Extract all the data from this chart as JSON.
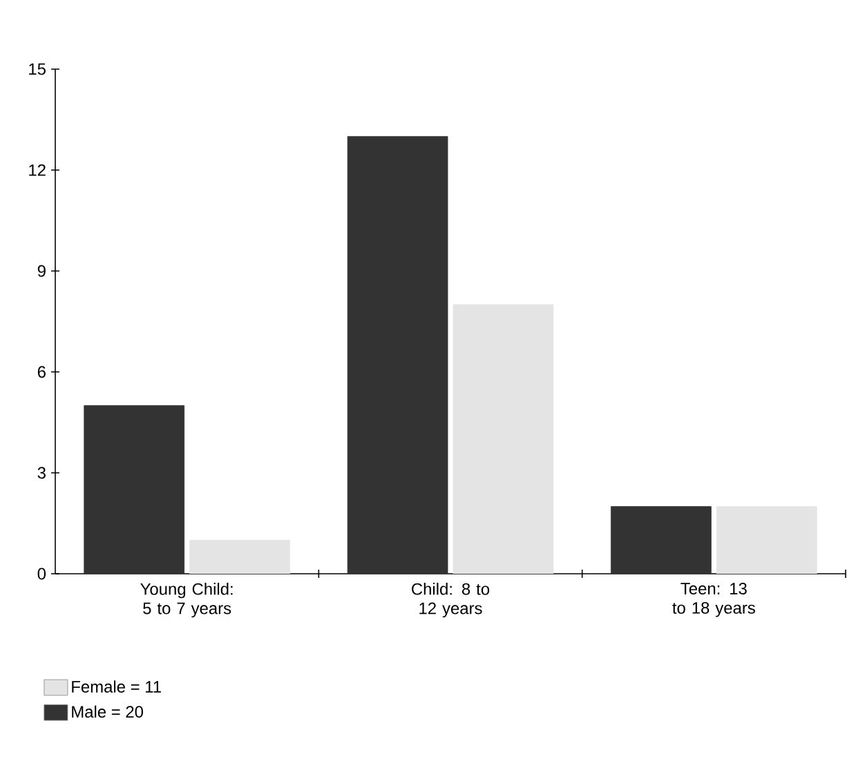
{
  "chart_data": {
    "type": "bar",
    "categories": [
      "Young Child: 5 to 7 years",
      "Child: 8 to 12 years",
      "Teen: 13 to 18 years"
    ],
    "series": [
      {
        "name": "Male = 20",
        "color": "#333333",
        "values": [
          5,
          13,
          2
        ]
      },
      {
        "name": "Female = 11",
        "color": "#e4e4e4",
        "values": [
          1,
          8,
          2
        ]
      }
    ],
    "ylim": [
      0,
      15
    ],
    "yticks": [
      0,
      3,
      6,
      9,
      12,
      15
    ],
    "grid": false,
    "legend": "bottom left"
  }
}
